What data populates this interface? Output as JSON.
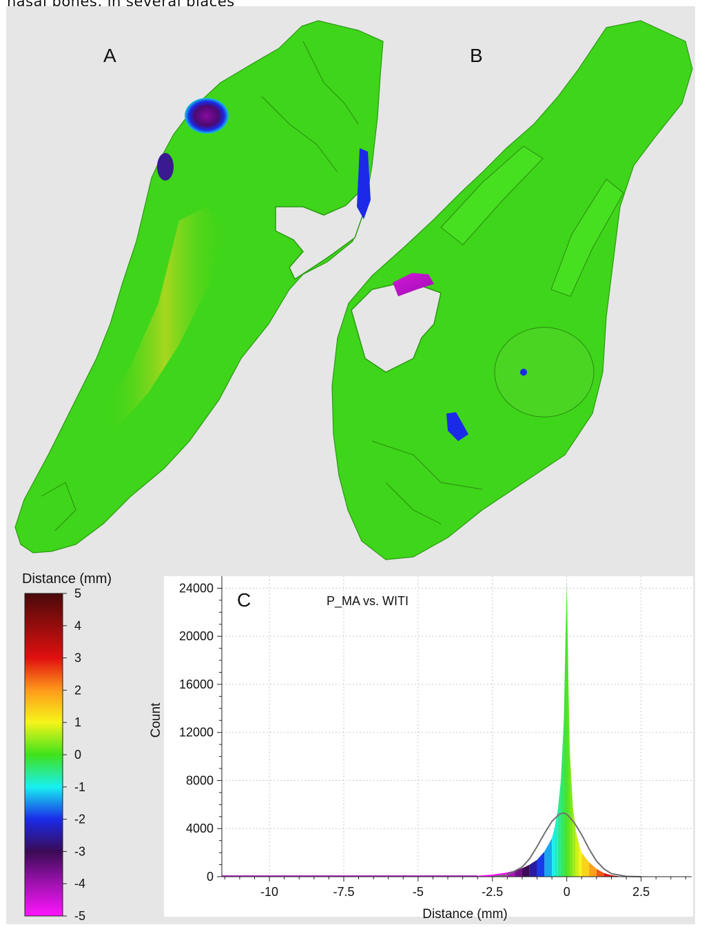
{
  "caption_fragment": "nasal bones, in several places",
  "panels": {
    "a_label": "A",
    "b_label": "B",
    "c_label": "C"
  },
  "colors": {
    "figure_background": "#e6e6e6",
    "bone_surface": "#3fd51a",
    "normal_curve": "#707070"
  },
  "colorbar": {
    "title": "Distance (mm)",
    "ticks": [
      "5",
      "4",
      "3",
      "2",
      "1",
      "0",
      "-1",
      "-2",
      "-3",
      "-4",
      "-5"
    ],
    "stops": [
      {
        "value": 5,
        "color": "#4a0a0a"
      },
      {
        "value": 3,
        "color": "#e00f0f"
      },
      {
        "value": 2,
        "color": "#ff9a1a"
      },
      {
        "value": 1,
        "color": "#f5f51a"
      },
      {
        "value": 0,
        "color": "#3fe21a"
      },
      {
        "value": -1,
        "color": "#18f0f0"
      },
      {
        "value": -2,
        "color": "#1a2ae8"
      },
      {
        "value": -3,
        "color": "#3a0a55"
      },
      {
        "value": -4,
        "color": "#a012b0"
      },
      {
        "value": -5,
        "color": "#ff14ff"
      }
    ]
  },
  "chart_data": {
    "type": "area",
    "title": "P_MA vs. WITI",
    "xlabel": "Distance (mm)",
    "ylabel": "Count",
    "xlim": [
      -11.6,
      4.2
    ],
    "ylim": [
      0,
      25000
    ],
    "x_ticks": [
      "-10",
      "-7.5",
      "-5",
      "-2.5",
      "0",
      "2.5"
    ],
    "x_tick_values": [
      -10,
      -7.5,
      -5,
      -2.5,
      0,
      2.5
    ],
    "y_ticks": [
      "0",
      "4000",
      "8000",
      "12000",
      "16000",
      "20000",
      "24000"
    ],
    "y_tick_values": [
      0,
      4000,
      8000,
      12000,
      16000,
      20000,
      24000
    ],
    "grid": true,
    "series": [
      {
        "type": "histogram",
        "x": [
          -3.0,
          -2.5,
          -2.0,
          -1.75,
          -1.5,
          -1.25,
          -1.0,
          -0.75,
          -0.5,
          -0.4,
          -0.3,
          -0.2,
          -0.1,
          -0.05,
          0.0,
          0.05,
          0.1,
          0.2,
          0.3,
          0.4,
          0.5,
          0.75,
          1.0,
          1.25,
          1.5,
          1.75
        ],
        "y": [
          80,
          180,
          350,
          500,
          700,
          1000,
          1400,
          2100,
          3200,
          4200,
          5600,
          8000,
          13000,
          19000,
          24700,
          17000,
          10500,
          6000,
          3900,
          2800,
          2000,
          1200,
          650,
          300,
          120,
          40
        ]
      },
      {
        "type": "normal-fit",
        "x": [
          -2.5,
          -2.0,
          -1.5,
          -1.25,
          -1.0,
          -0.75,
          -0.5,
          -0.25,
          -0.1,
          0.0,
          0.25,
          0.5,
          0.75,
          1.0,
          1.25,
          1.5,
          2.0,
          2.5
        ],
        "y": [
          10,
          150,
          800,
          1500,
          2500,
          3600,
          4600,
          5200,
          5300,
          5200,
          4500,
          3500,
          2300,
          1300,
          650,
          250,
          30,
          0
        ]
      }
    ]
  }
}
